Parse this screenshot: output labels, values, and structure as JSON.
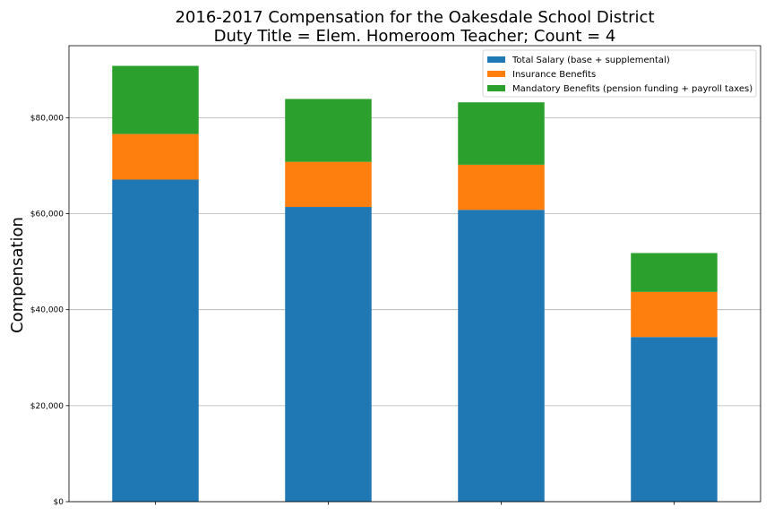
{
  "chart_data": {
    "type": "bar",
    "stacked": true,
    "title_lines": [
      "2016-2017 Compensation for the Oakesdale School District",
      "Duty Title = Elem. Homeroom Teacher; Count = 4"
    ],
    "xlabel": "",
    "ylabel": "Compensation",
    "categories": [
      "",
      "",
      "",
      ""
    ],
    "ylim": [
      0,
      95000
    ],
    "yticks": [
      0,
      20000,
      40000,
      60000,
      80000
    ],
    "ytick_labels": [
      "$0",
      "$20,000",
      "$40,000",
      "$60,000",
      "$80,000"
    ],
    "grid": "horizontal",
    "legend_position": "top-right",
    "series": [
      {
        "name": "Total Salary (base + supplemental)",
        "color": "#1f77b4",
        "values": [
          67100,
          61400,
          60800,
          34300
        ]
      },
      {
        "name": "Insurance Benefits",
        "color": "#ff7f0e",
        "values": [
          9500,
          9400,
          9400,
          9400
        ]
      },
      {
        "name": "Mandatory Benefits (pension funding + payroll taxes)",
        "color": "#2ca02c",
        "values": [
          14200,
          13100,
          13000,
          8100
        ]
      }
    ]
  }
}
